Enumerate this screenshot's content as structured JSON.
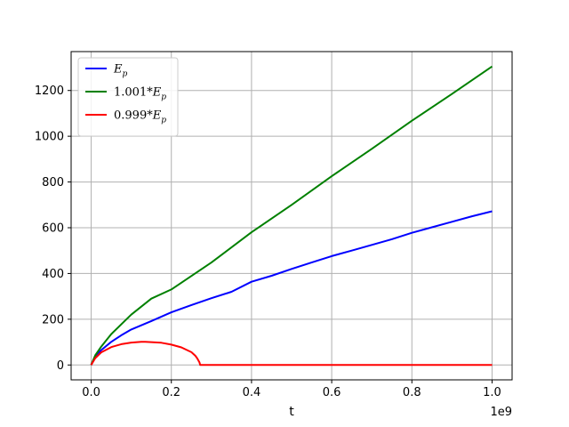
{
  "chart_data": {
    "type": "line",
    "xlabel": "t",
    "x_offset_label": "1e9",
    "xlim": [
      -0.05,
      1.05
    ],
    "ylim": [
      -65,
      1370
    ],
    "x_ticks": [
      0.0,
      0.2,
      0.4,
      0.6,
      0.8,
      1.0
    ],
    "x_tick_labels": [
      "0.0",
      "0.2",
      "0.4",
      "0.6",
      "0.8",
      "1.0"
    ],
    "y_ticks": [
      0,
      200,
      400,
      600,
      800,
      1000,
      1200
    ],
    "y_tick_labels": [
      "0",
      "200",
      "400",
      "600",
      "800",
      "1000",
      "1200"
    ],
    "grid": true,
    "legend_position": "top-left",
    "series": [
      {
        "name": "E_p",
        "legend": {
          "prefix": "",
          "base": "E",
          "sub": "p"
        },
        "color": "#0000ff",
        "x": [
          0,
          0.01,
          0.025,
          0.05,
          0.075,
          0.1,
          0.15,
          0.2,
          0.25,
          0.3,
          0.35,
          0.4,
          0.45,
          0.5,
          0.55,
          0.6,
          0.65,
          0.7,
          0.75,
          0.8,
          0.85,
          0.9,
          0.95,
          1.0
        ],
        "y": [
          0,
          36,
          65,
          101,
          130,
          155,
          192,
          230,
          262,
          292,
          320,
          364,
          390,
          420,
          448,
          476,
          500,
          525,
          550,
          578,
          602,
          626,
          650,
          672
        ]
      },
      {
        "name": "1.001*E_p",
        "legend": {
          "prefix": "1.001*",
          "base": "E",
          "sub": "p"
        },
        "color": "#008000",
        "x": [
          0,
          0.01,
          0.025,
          0.05,
          0.1,
          0.15,
          0.2,
          0.3,
          0.4,
          0.5,
          0.6,
          0.7,
          0.8,
          0.9,
          1.0
        ],
        "y": [
          0,
          42,
          80,
          135,
          220,
          290,
          330,
          448,
          580,
          700,
          825,
          945,
          1068,
          1185,
          1305
        ]
      },
      {
        "name": "0.999*E_p",
        "legend": {
          "prefix": "0.999*",
          "base": "E",
          "sub": "p"
        },
        "color": "#ff0000",
        "x": [
          0,
          0.01,
          0.025,
          0.05,
          0.075,
          0.1,
          0.125,
          0.135,
          0.15,
          0.175,
          0.2,
          0.225,
          0.25,
          0.26,
          0.265,
          0.27,
          0.272,
          0.3,
          0.5,
          0.75,
          1.0
        ],
        "y": [
          0,
          30,
          55,
          78,
          91,
          98,
          101,
          101,
          100,
          97,
          89,
          77,
          56,
          40,
          28,
          12,
          0,
          0,
          0,
          0,
          0
        ]
      }
    ]
  }
}
